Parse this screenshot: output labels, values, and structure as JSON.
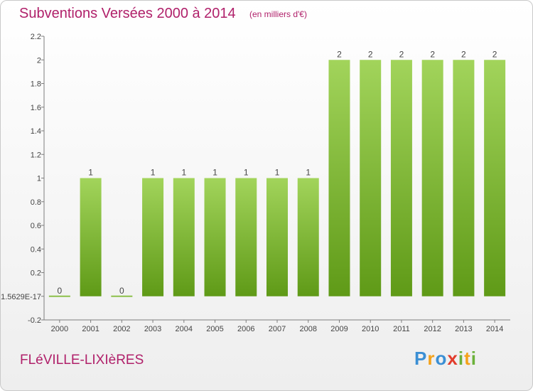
{
  "header": {
    "title": "Subventions Versées 2000 à 2014",
    "subtitle": "(en milliers d'€)"
  },
  "footer": {
    "commune": "FLéVILLE-LIXIèRES",
    "logo": "Proxiti"
  },
  "colors": {
    "title": "#b0206a",
    "bar_light": "#a2d45b",
    "bar_dark": "#5f9a17",
    "axis": "#7d7d7d",
    "grid": "#c8c8c8"
  },
  "chart_data": {
    "type": "bar",
    "title": "Subventions Versées 2000 à 2014",
    "subtitle": "(en milliers d'€)",
    "categories": [
      "2000",
      "2001",
      "2002",
      "2003",
      "2004",
      "2005",
      "2006",
      "2007",
      "2008",
      "2009",
      "2010",
      "2011",
      "2012",
      "2013",
      "2014"
    ],
    "values": [
      0,
      1,
      0,
      1,
      1,
      1,
      1,
      1,
      1,
      2,
      2,
      2,
      2,
      2,
      2
    ],
    "data_labels": [
      "0",
      "1",
      "0",
      "1",
      "1",
      "1",
      "1",
      "1",
      "1",
      "2",
      "2",
      "2",
      "2",
      "2",
      "2"
    ],
    "yticks": [
      -0.2,
      1.5629e-17,
      0.2,
      0.4,
      0.6,
      0.8,
      1,
      1.2,
      1.4,
      1.6,
      1.8,
      2,
      2.2
    ],
    "ytick_labels": [
      "-0.2",
      "1.5629E-17",
      "0.2",
      "0.4",
      "0.6",
      "0.8",
      "1",
      "1.2",
      "1.4",
      "1.6",
      "1.8",
      "2",
      "2.2"
    ],
    "ylim": [
      -0.2,
      2.2
    ],
    "xlabel": "",
    "ylabel": "",
    "grid": false,
    "legend": "none"
  }
}
